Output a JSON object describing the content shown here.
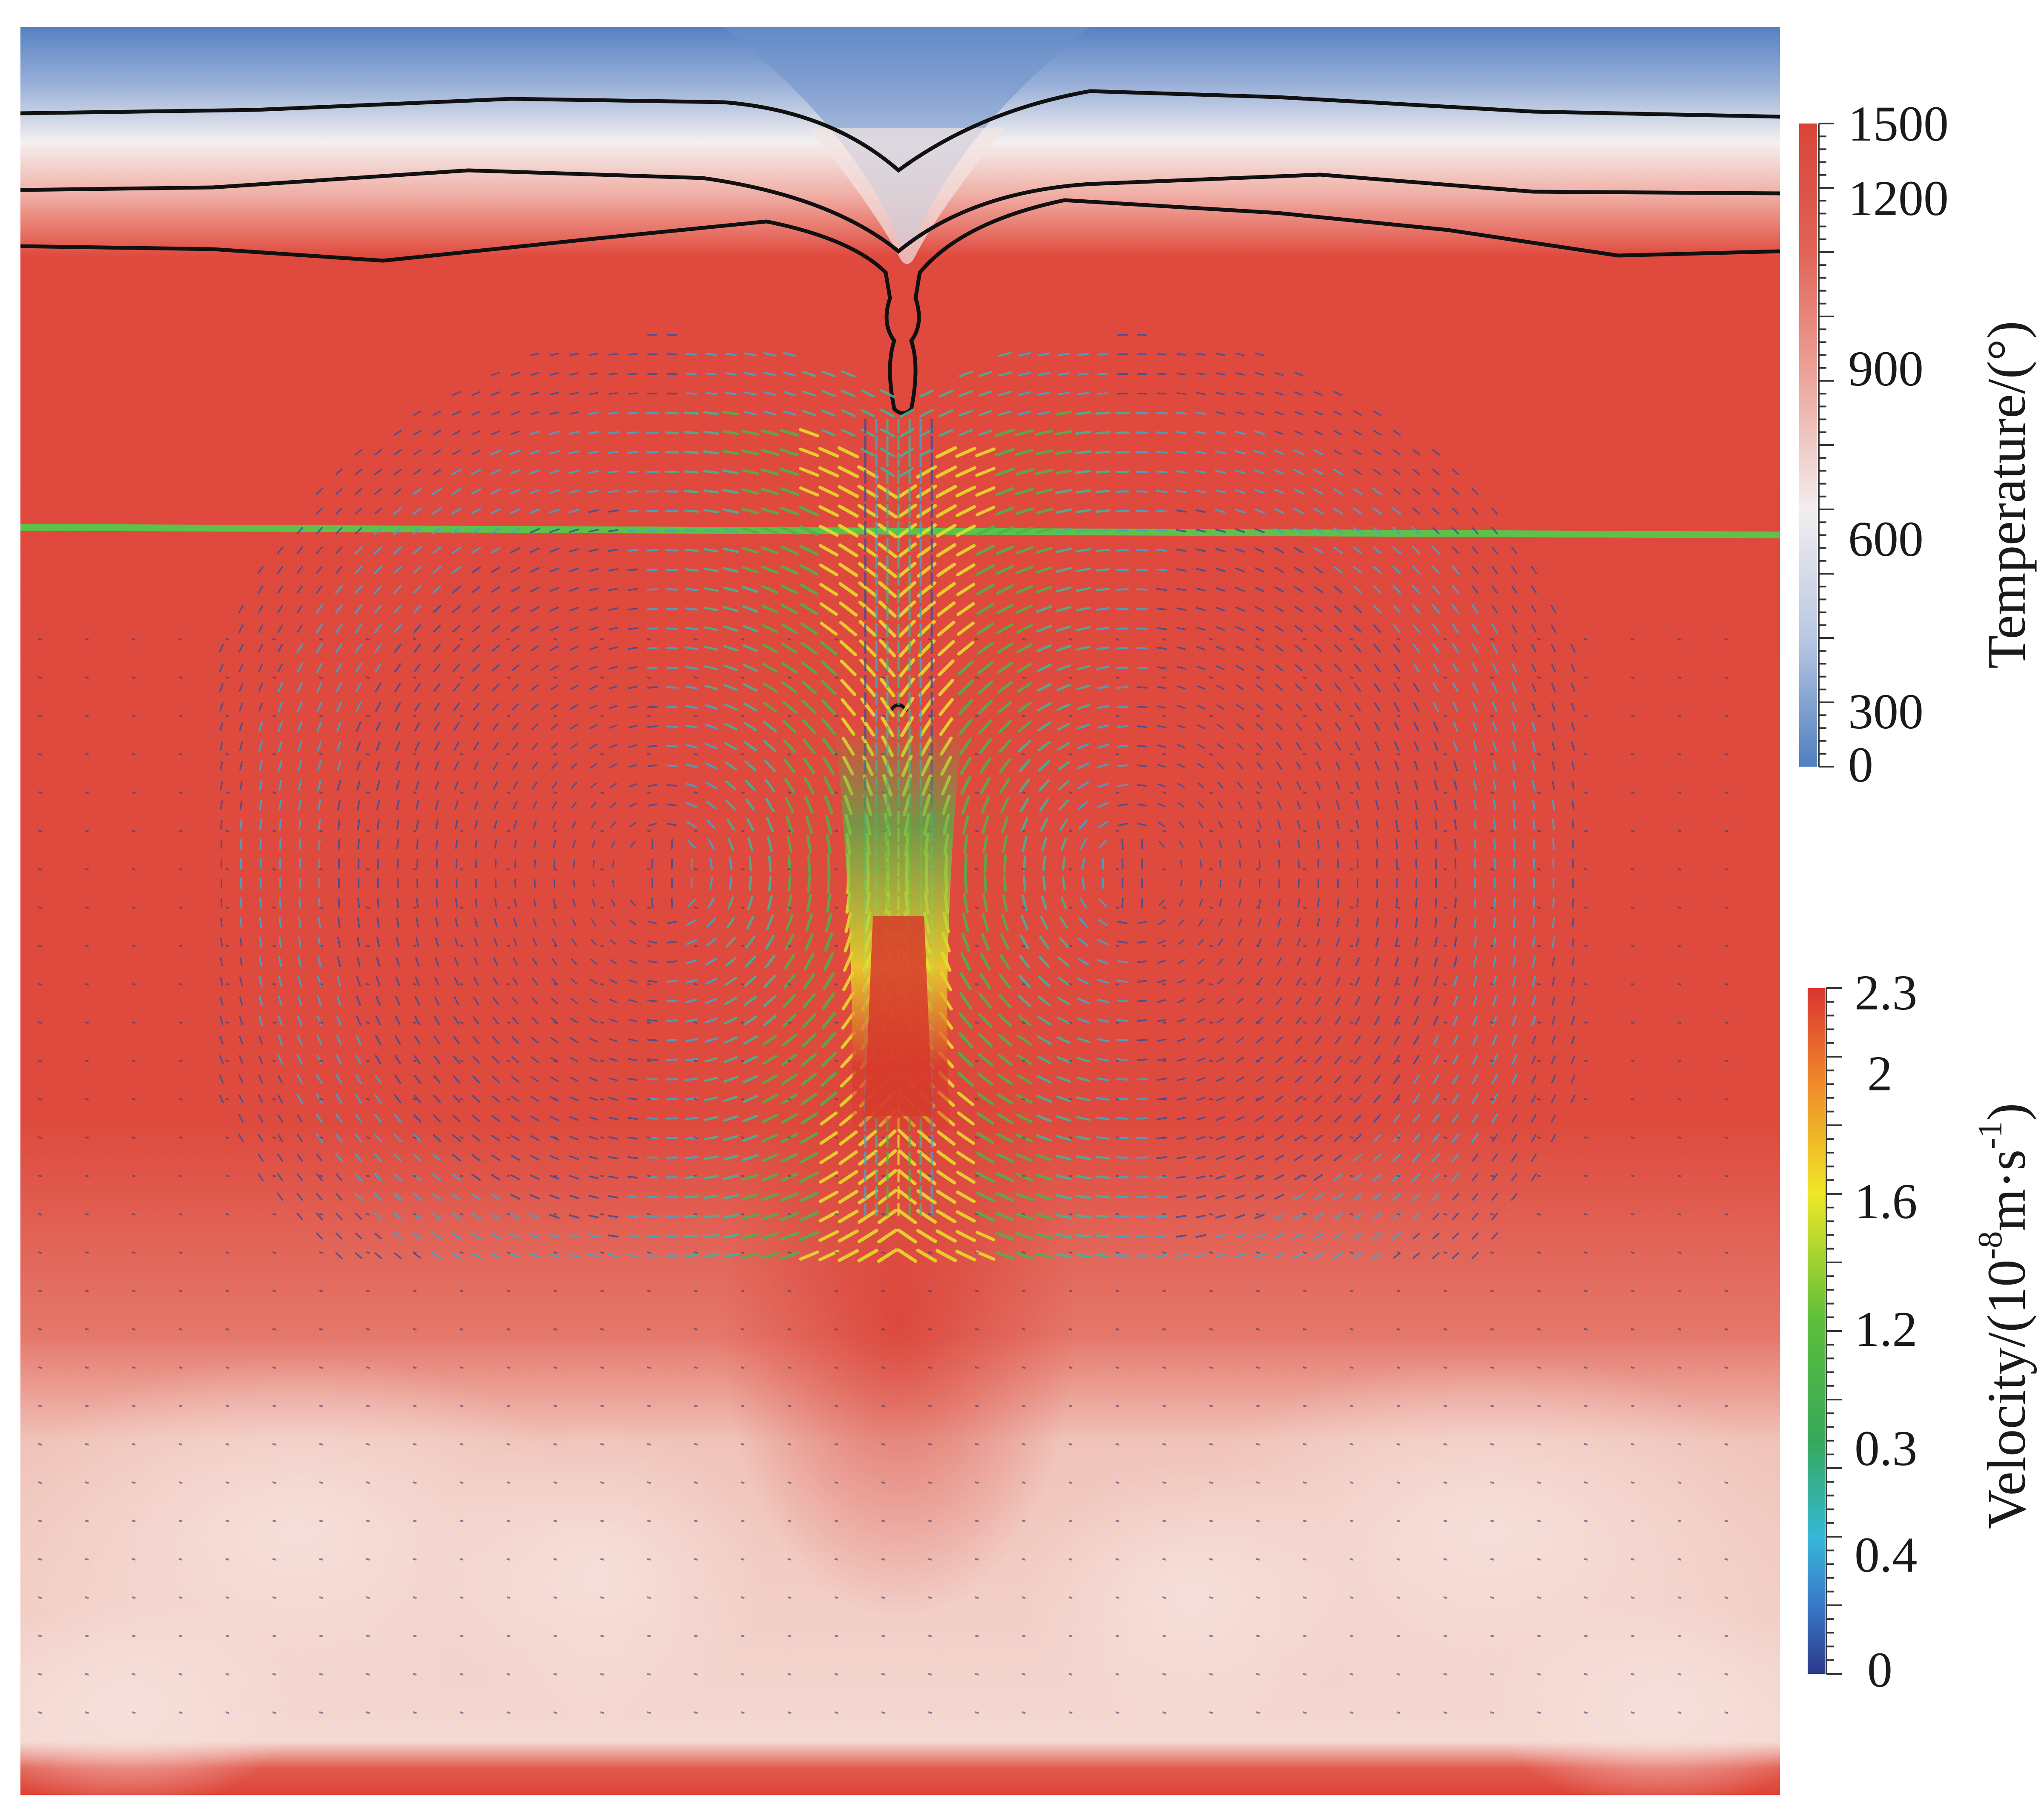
{
  "colorbars": {
    "temperature": {
      "title": "Temperature/(°)",
      "ticks": [
        "1500",
        "1200",
        "900",
        "600",
        "300",
        "0"
      ],
      "tick_values": [
        1500,
        1200,
        900,
        600,
        300,
        0
      ],
      "colors": [
        "#d94438",
        "#e46b5e",
        "#f0b5ac",
        "#f3ecec",
        "#b7c6e2",
        "#4f7fc0"
      ]
    },
    "velocity": {
      "title_main": "Velocity/(10",
      "title_exp1": "-8",
      "title_mid": "m·s",
      "title_exp2": "-1",
      "title_end": ")",
      "ticks": [
        "2.3",
        "2",
        "1.6",
        "1.2",
        "0.3",
        "0.4",
        "0"
      ],
      "colors": [
        "#d93530",
        "#f08a2a",
        "#eee827",
        "#5fbf3a",
        "#35a95a",
        "#36b8d8",
        "#3a78c8",
        "#2b3a8a"
      ]
    }
  },
  "colors": {
    "mantle_hot": "#df4b3f",
    "surface_cold": "#5b86c4",
    "isotherm": "#111111",
    "green_line": "#5cc24a",
    "bottom_lighter": "#f2d3cc"
  }
}
